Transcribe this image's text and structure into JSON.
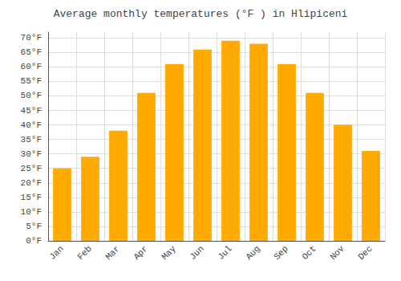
{
  "chart_data": {
    "type": "bar",
    "title": "Average monthly temperatures (°F ) in Hlipiceni",
    "categories": [
      "Jan",
      "Feb",
      "Mar",
      "Apr",
      "May",
      "Jun",
      "Jul",
      "Aug",
      "Sep",
      "Oct",
      "Nov",
      "Dec"
    ],
    "values": [
      25,
      29,
      38,
      51,
      61,
      66,
      69,
      68,
      61,
      51,
      40,
      31
    ],
    "color": "#FFAA00",
    "ylim": [
      0,
      72
    ],
    "yticks": [
      {
        "value": 0,
        "label": "0°F"
      },
      {
        "value": 5,
        "label": "5°F"
      },
      {
        "value": 10,
        "label": "10°F"
      },
      {
        "value": 15,
        "label": "15°F"
      },
      {
        "value": 20,
        "label": "20°F"
      },
      {
        "value": 25,
        "label": "25°F"
      },
      {
        "value": 30,
        "label": "30°F"
      },
      {
        "value": 35,
        "label": "35°F"
      },
      {
        "value": 40,
        "label": "40°F"
      },
      {
        "value": 45,
        "label": "45°F"
      },
      {
        "value": 50,
        "label": "50°F"
      },
      {
        "value": 55,
        "label": "55°F"
      },
      {
        "value": 60,
        "label": "60°F"
      },
      {
        "value": 65,
        "label": "65°F"
      },
      {
        "value": 70,
        "label": "70°F"
      }
    ],
    "grid": true
  }
}
